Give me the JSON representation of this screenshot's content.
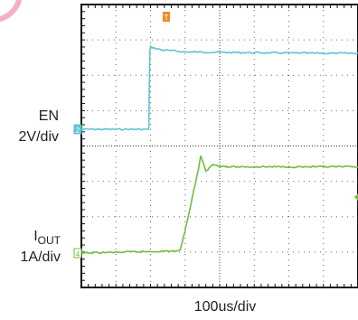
{
  "chart_data": {
    "type": "line",
    "title": "",
    "xlabel": "100us/div",
    "x_unit": "us",
    "x_per_div": 100,
    "x_divisions": 10,
    "y_divisions": 8,
    "grid": true,
    "trigger_marker": "T",
    "series": [
      {
        "name": "EN",
        "scale": "2V/div",
        "color": "#5bc4d6",
        "marker_label": "2",
        "x": [
          0,
          195,
          198,
          200,
          230,
          300,
          450,
          700,
          1000
        ],
        "y": [
          0,
          0,
          5.5,
          5.9,
          5.7,
          5.55,
          5.5,
          5.45,
          5.45
        ]
      },
      {
        "name": "IOUT",
        "name_main": "I",
        "name_sub": "OUT",
        "scale": "1A/div",
        "color": "#6fbf3b",
        "marker_label": "4",
        "x": [
          0,
          285,
          300,
          320,
          340,
          345,
          360,
          380,
          420,
          500,
          700,
          1000
        ],
        "y": [
          0,
          0.05,
          0.5,
          1.2,
          1.9,
          2.15,
          1.8,
          1.95,
          1.9,
          1.9,
          1.9,
          1.9
        ]
      }
    ]
  }
}
